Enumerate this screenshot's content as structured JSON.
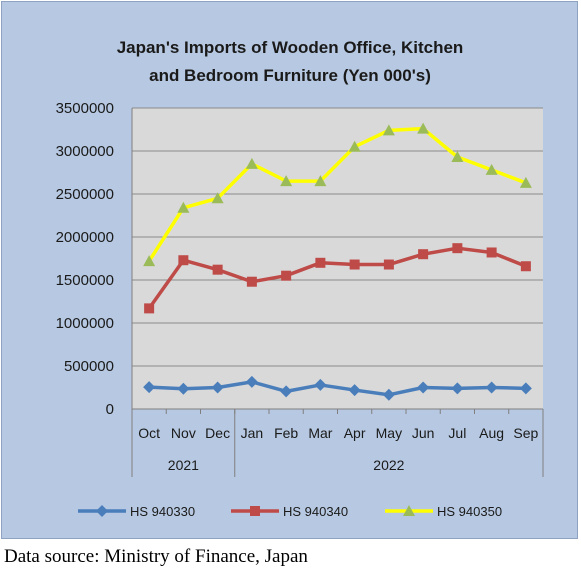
{
  "chart_data": {
    "type": "line",
    "title": "Japan's Imports of  Wooden  Office, Kitchen and Bedroom Furniture (Yen 000's)",
    "title_lines": [
      "Japan's Imports of  Wooden  Office, Kitchen",
      "and Bedroom Furniture (Yen 000's)"
    ],
    "categories": [
      "Oct",
      "Nov",
      "Dec",
      "Jan",
      "Feb",
      "Mar",
      "Apr",
      "May",
      "Jun",
      "Jul",
      "Aug",
      "Sep"
    ],
    "category_groups": [
      {
        "label": "2021",
        "start": 0,
        "end": 2
      },
      {
        "label": "2022",
        "start": 3,
        "end": 11
      }
    ],
    "ylim": [
      0,
      3500000
    ],
    "yticks": [
      0,
      500000,
      1000000,
      1500000,
      2000000,
      2500000,
      3000000,
      3500000
    ],
    "ytick_labels": [
      "0",
      "500000",
      "1000000",
      "1500000",
      "2000000",
      "2500000",
      "3000000",
      "3500000"
    ],
    "grid": true,
    "legend_position": "bottom",
    "series": [
      {
        "name": "HS 940330",
        "color": "#4a7ebb",
        "marker": "diamond",
        "values": [
          255000,
          235000,
          250000,
          315000,
          205000,
          280000,
          220000,
          165000,
          250000,
          240000,
          250000,
          240000
        ]
      },
      {
        "name": "HS 940340",
        "color": "#be4b48",
        "marker": "square",
        "values": [
          1170000,
          1730000,
          1620000,
          1480000,
          1550000,
          1700000,
          1680000,
          1680000,
          1800000,
          1870000,
          1820000,
          1660000
        ]
      },
      {
        "name": "HS 940350",
        "color": "#ffff00",
        "marker": "triangle",
        "marker_color": "#9bbb59",
        "values": [
          1720000,
          2340000,
          2450000,
          2850000,
          2650000,
          2650000,
          3050000,
          3240000,
          3260000,
          2930000,
          2780000,
          2630000
        ]
      }
    ]
  },
  "source_note": "Data source: Ministry of Finance, Japan"
}
